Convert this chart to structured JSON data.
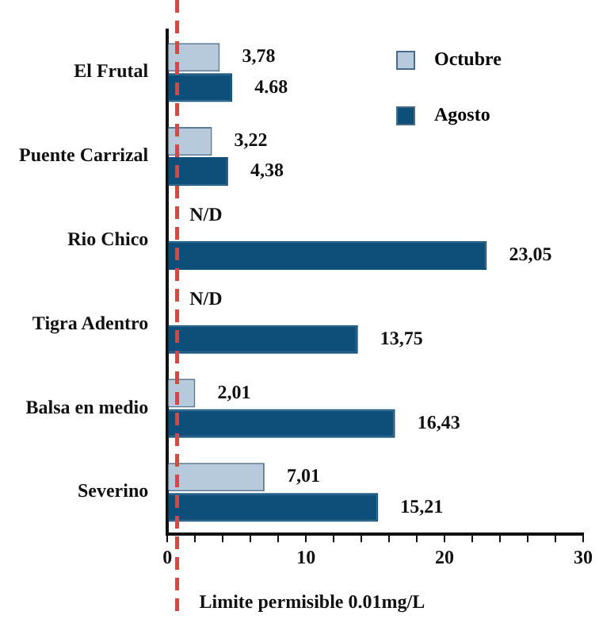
{
  "chart_data": {
    "type": "bar",
    "orientation": "horizontal",
    "categories": [
      "El Frutal",
      "Puente Carrizal",
      "Rio Chico",
      "Tigra Adentro",
      "Balsa en medio",
      "Severino"
    ],
    "series": [
      {
        "name": "Octubre",
        "color": "#b7cadb",
        "values": [
          3.78,
          3.22,
          null,
          null,
          2.01,
          7.01
        ],
        "value_labels": [
          "3,78",
          "3,22",
          "N/D",
          "N/D",
          "2,01",
          "7,01"
        ]
      },
      {
        "name": "Agosto",
        "color": "#0e4f7a",
        "values": [
          4.68,
          4.38,
          23.05,
          13.75,
          16.43,
          15.21
        ],
        "value_labels": [
          "4.68",
          "4,38",
          "23,05",
          "13,75",
          "16,43",
          "15,21"
        ]
      }
    ],
    "xlim": [
      0,
      30
    ],
    "xticks": [
      0,
      {
        "value": 2,
        "label": null
      },
      {
        "value": 4,
        "label": null
      },
      {
        "value": 6,
        "label": null
      },
      {
        "value": 8,
        "label": null
      },
      10,
      {
        "value": 12,
        "label": null
      },
      {
        "value": 14,
        "label": null
      },
      {
        "value": 16,
        "label": null
      },
      {
        "value": 18,
        "label": null
      },
      20,
      {
        "value": 22,
        "label": null
      },
      {
        "value": 24,
        "label": null
      },
      {
        "value": 26,
        "label": null
      },
      {
        "value": 28,
        "label": null
      },
      30
    ],
    "ref_lines": [
      {
        "axis": "x",
        "value": 0.7,
        "label": "Limite permisible 0.01mg/L",
        "color": "#e8403a",
        "line_style": "dashed"
      }
    ],
    "grid": false,
    "legend": "top right"
  }
}
